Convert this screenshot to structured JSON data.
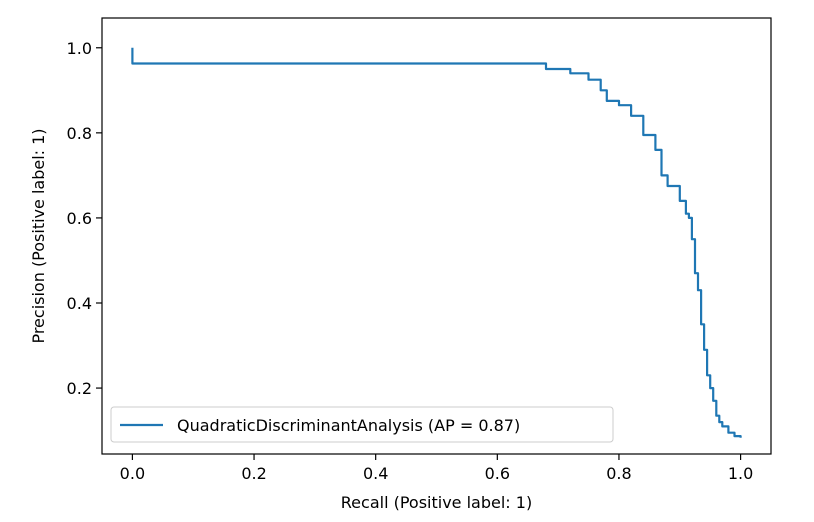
{
  "chart_data": {
    "type": "line",
    "xlabel": "Recall (Positive label: 1)",
    "ylabel": "Precision (Positive label: 1)",
    "xlim": [
      -0.05,
      1.05
    ],
    "ylim": [
      0.045,
      1.07
    ],
    "x_ticks": [
      0.0,
      0.2,
      0.4,
      0.6,
      0.8,
      1.0
    ],
    "x_tick_labels": [
      "0.0",
      "0.2",
      "0.4",
      "0.6",
      "0.8",
      "1.0"
    ],
    "y_ticks": [
      0.2,
      0.4,
      0.6,
      0.8,
      1.0
    ],
    "y_tick_labels": [
      "0.2",
      "0.4",
      "0.6",
      "0.8",
      "1.0"
    ],
    "grid": false,
    "legend_position": "bottom-left",
    "series": [
      {
        "name": "QuadraticDiscriminantAnalysis (AP = 0.87)",
        "color": "#1f77b4",
        "x": [
          0.0,
          0.0,
          0.66,
          0.68,
          0.72,
          0.75,
          0.77,
          0.78,
          0.8,
          0.82,
          0.84,
          0.86,
          0.87,
          0.88,
          0.9,
          0.91,
          0.915,
          0.92,
          0.925,
          0.93,
          0.935,
          0.94,
          0.945,
          0.95,
          0.955,
          0.96,
          0.965,
          0.97,
          0.98,
          0.99,
          1.0
        ],
        "y": [
          1.0,
          0.963,
          0.963,
          0.95,
          0.94,
          0.925,
          0.9,
          0.875,
          0.865,
          0.84,
          0.795,
          0.76,
          0.7,
          0.675,
          0.64,
          0.61,
          0.6,
          0.55,
          0.47,
          0.43,
          0.35,
          0.29,
          0.23,
          0.2,
          0.17,
          0.135,
          0.12,
          0.11,
          0.095,
          0.087,
          0.083
        ]
      }
    ]
  }
}
